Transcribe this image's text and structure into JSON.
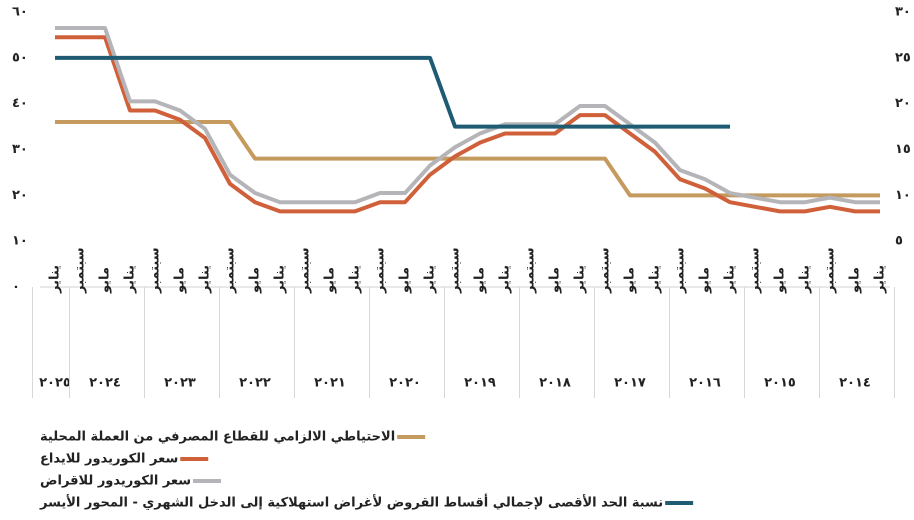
{
  "chart_data": {
    "type": "line",
    "categories": [
      "يناير",
      "مايو",
      "سبتمبر",
      "يناير",
      "مايو",
      "سبتمبر",
      "يناير",
      "مايو",
      "سبتمبر",
      "يناير",
      "مايو",
      "سبتمبر",
      "يناير",
      "مايو",
      "سبتمبر",
      "يناير",
      "مايو",
      "سبتمبر",
      "يناير",
      "مايو",
      "سبتمبر",
      "يناير",
      "مايو",
      "سبتمبر",
      "يناير",
      "مايو",
      "سبتمبر",
      "يناير",
      "مايو",
      "سبتمبر",
      "يناير",
      "مايو",
      "سبتمبر",
      "يناير"
    ],
    "years": [
      "٢٠١٤",
      "٢٠١٥",
      "٢٠١٦",
      "٢٠١٧",
      "٢٠١٨",
      "٢٠١٩",
      "٢٠٢٠",
      "٢٠٢١",
      "٢٠٢٢",
      "٢٠٢٣",
      "٢٠٢٤",
      "٢٠٢٥"
    ],
    "ylim": [
      0,
      60
    ],
    "yticks": [
      {
        "value": 0,
        "label": "٠"
      },
      {
        "value": 10,
        "label": "١٠"
      },
      {
        "value": 20,
        "label": "٢٠"
      },
      {
        "value": 30,
        "label": "٣٠"
      },
      {
        "value": 40,
        "label": "٤٠"
      },
      {
        "value": 50,
        "label": "٥٠"
      },
      {
        "value": 60,
        "label": "٦٠"
      }
    ],
    "y2lim": [
      0,
      30
    ],
    "y2ticks": [
      {
        "value": 5,
        "label": "٥"
      },
      {
        "value": 10,
        "label": "١٠"
      },
      {
        "value": 15,
        "label": "١٥"
      },
      {
        "value": 20,
        "label": "٢٠"
      },
      {
        "value": 25,
        "label": "٢٥"
      },
      {
        "value": 30,
        "label": "٣٠"
      }
    ],
    "series": [
      {
        "name": "الاحتياطي الالزامي للقطاع المصرفي من العملة المحلية",
        "color": "#c49a5f",
        "axis": "y2",
        "values": [
          10,
          10,
          10,
          10,
          10,
          10,
          10,
          10,
          10,
          10,
          10,
          14,
          14,
          14,
          14,
          14,
          14,
          14,
          14,
          14,
          14,
          14,
          14,
          14,
          14,
          14,
          18,
          18,
          18,
          18,
          18,
          18,
          18,
          18
        ]
      },
      {
        "name": "سعر الكوريدور للايداع",
        "color": "#d0603a",
        "axis": "y2",
        "values": [
          8.25,
          8.25,
          8.75,
          8.25,
          8.25,
          8.75,
          9.25,
          10.75,
          11.75,
          14.75,
          16.75,
          18.75,
          18.75,
          16.75,
          16.75,
          16.75,
          15.75,
          14.25,
          12.25,
          9.25,
          9.25,
          8.25,
          8.25,
          8.25,
          8.25,
          9.25,
          11.25,
          16.25,
          18.25,
          19.25,
          19.25,
          27.25,
          27.25,
          27.25
        ]
      },
      {
        "name": "سعر الكوريدور للاقراض",
        "color": "#b5b5b9",
        "axis": "y2",
        "values": [
          9.25,
          9.25,
          9.75,
          9.25,
          9.25,
          9.75,
          10.25,
          11.75,
          12.75,
          15.75,
          17.75,
          19.75,
          19.75,
          17.75,
          17.75,
          17.75,
          16.75,
          15.25,
          13.25,
          10.25,
          10.25,
          9.25,
          9.25,
          9.25,
          9.25,
          10.25,
          12.25,
          17.25,
          19.25,
          20.25,
          20.25,
          28.25,
          28.25,
          28.25
        ]
      },
      {
        "name": "نسبة الحد الأقصى لإجمالي أقساط القروض لأغراض استهلاكية إلى الدخل الشهري - المحور الأيسر",
        "color": "#1f5c73",
        "axis": "y",
        "values": [
          null,
          null,
          null,
          null,
          null,
          null,
          35,
          35,
          35,
          35,
          35,
          35,
          35,
          35,
          35,
          35,
          35,
          35,
          50,
          50,
          50,
          50,
          50,
          50,
          50,
          50,
          50,
          50,
          50,
          50,
          50,
          50,
          50,
          50
        ]
      }
    ]
  }
}
